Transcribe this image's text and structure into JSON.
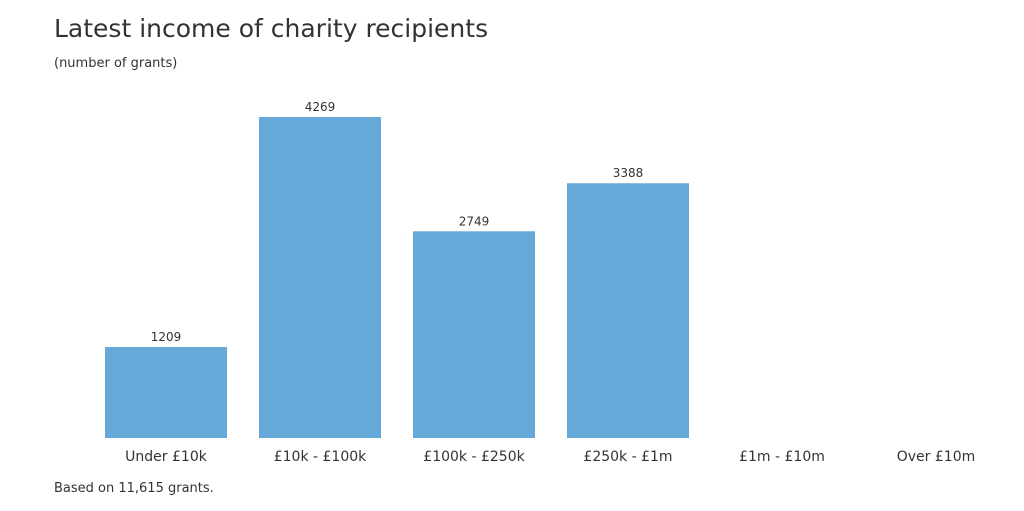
{
  "colors": {
    "bar": "#66a9d9",
    "text": "#333333",
    "axis": "#4d4d4d"
  },
  "chart_data": {
    "type": "bar",
    "title": "Latest income of charity recipients",
    "subtitle": "(number of grants)",
    "footnote": "Based on 11,615 grants.",
    "xlabel": "",
    "ylabel": "",
    "categories": [
      "Under £10k",
      "£10k - £100k",
      "£100k - £250k",
      "£250k - £1m",
      "£1m - £10m",
      "Over £10m"
    ],
    "values": [
      1209,
      4269,
      2749,
      3388,
      null,
      null
    ],
    "data_labels": [
      "1209",
      "4269",
      "2749",
      "3388",
      "",
      ""
    ],
    "ylim": [
      0,
      4269
    ],
    "grid": false,
    "legend": "none"
  }
}
